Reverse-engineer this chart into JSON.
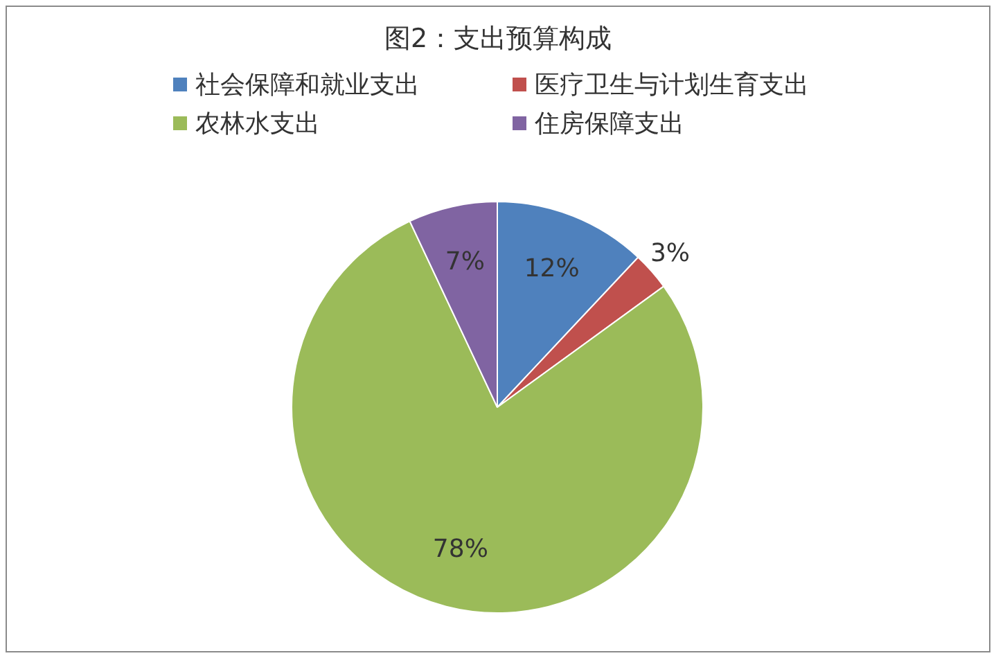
{
  "chart_data": {
    "type": "pie",
    "title": "图2：支出预算构成",
    "categories": [
      "社会保障和就业支出",
      "医疗卫生与计划生育支出",
      "农林水支出",
      "住房保障支出"
    ],
    "values": [
      12,
      3,
      78,
      7
    ],
    "colors": [
      "#4f81bd",
      "#c0504d",
      "#9bbb59",
      "#8064a2"
    ],
    "value_labels": [
      "12%",
      "3%",
      "78%",
      "7%"
    ],
    "legend": "top"
  }
}
